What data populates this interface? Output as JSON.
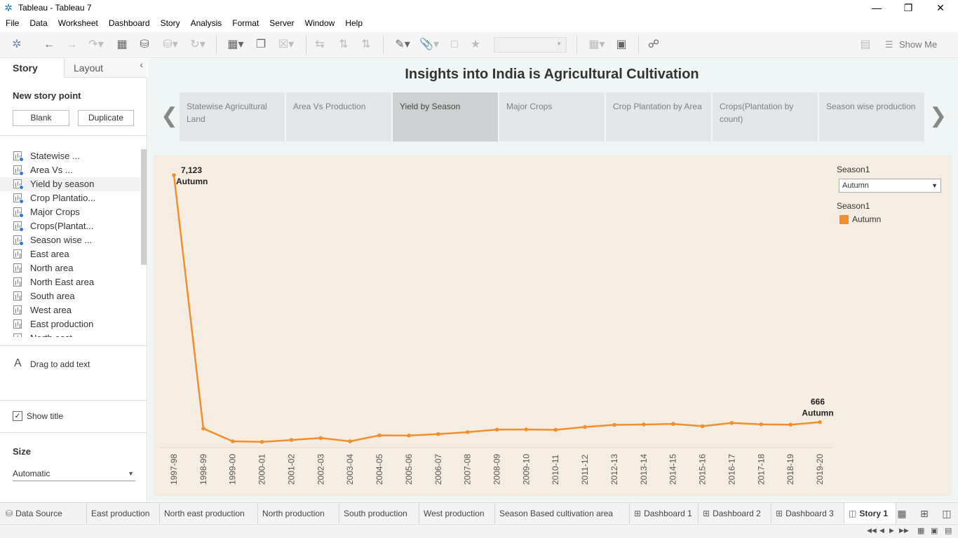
{
  "window": {
    "title": "Tableau - Tableau 7",
    "icon": "tableau-logo-icon",
    "controls": [
      "minimize",
      "restore",
      "close"
    ]
  },
  "menu": [
    "File",
    "Data",
    "Worksheet",
    "Dashboard",
    "Story",
    "Analysis",
    "Format",
    "Server",
    "Window",
    "Help"
  ],
  "toolbar": {
    "show_me_label": "Show Me"
  },
  "left_pane": {
    "tabs": {
      "story": "Story",
      "layout": "Layout"
    },
    "new_story_point": "New story point",
    "blank_label": "Blank",
    "duplicate_label": "Duplicate",
    "sheets": [
      {
        "label": "Statewise ...",
        "used": true
      },
      {
        "label": "Area Vs ...",
        "used": true
      },
      {
        "label": "Yield by season",
        "used": true,
        "selected": true
      },
      {
        "label": "Crop Plantatio...",
        "used": true
      },
      {
        "label": "Major Crops",
        "used": true
      },
      {
        "label": "Crops(Plantat...",
        "used": true
      },
      {
        "label": "Season wise ...",
        "used": true
      },
      {
        "label": "East area",
        "used": false
      },
      {
        "label": "North area",
        "used": false
      },
      {
        "label": "North East area",
        "used": false
      },
      {
        "label": "South area",
        "used": false
      },
      {
        "label": "West area",
        "used": false
      },
      {
        "label": "East production",
        "used": false
      },
      {
        "label": "North east ...",
        "used": false
      }
    ],
    "drag_text_icon": "A",
    "drag_text_label": "Drag to add text",
    "show_title_label": "Show title",
    "show_title_checked": true,
    "size_label": "Size",
    "size_value": "Automatic"
  },
  "story": {
    "title": "Insights into India is Agricultural Cultivation",
    "story_points": [
      {
        "label": "Statewise Agricultural Land",
        "active": false
      },
      {
        "label": "Area Vs Production",
        "active": false
      },
      {
        "label": "Yield by Season",
        "active": true
      },
      {
        "label": "Major Crops",
        "active": false
      },
      {
        "label": "Crop Plantation by Area",
        "active": false
      },
      {
        "label": "Crops(Plantation by count)",
        "active": false
      },
      {
        "label": "Season wise production",
        "active": false
      }
    ]
  },
  "legend": {
    "filter_title": "Season1",
    "filter_value": "Autumn",
    "color_title": "Season1",
    "items": [
      {
        "label": "Autumn",
        "color": "#f28e2b"
      }
    ]
  },
  "chart_data": {
    "type": "line",
    "x": [
      "1997-98",
      "1998-99",
      "1999-00",
      "2000-01",
      "2001-02",
      "2002-03",
      "2003-04",
      "2004-05",
      "2005-06",
      "2006-07",
      "2007-08",
      "2008-09",
      "2009-10",
      "2010-11",
      "2011-12",
      "2012-13",
      "2013-14",
      "2014-15",
      "2015-16",
      "2016-17",
      "2017-18",
      "2018-19",
      "2019-20"
    ],
    "series": [
      {
        "name": "Autumn",
        "color": "#f28e2b",
        "values": [
          7123,
          500,
          165,
          150,
          200,
          250,
          165,
          320,
          315,
          355,
          405,
          470,
          475,
          465,
          540,
          595,
          605,
          620,
          560,
          645,
          610,
          600,
          666
        ]
      }
    ],
    "annotations": [
      {
        "value_label": "7,123",
        "series_label": "Autumn"
      },
      {
        "value_label": "666",
        "series_label": "Autumn"
      }
    ],
    "ylim": [
      0,
      7123
    ],
    "grid": false,
    "legend": "right"
  },
  "bottom_tabs": [
    {
      "label": "Data Source",
      "icon": "database-icon",
      "active": false
    },
    {
      "label": "East production",
      "icon": "",
      "active": false
    },
    {
      "label": "North east production",
      "icon": "",
      "active": false
    },
    {
      "label": "North production",
      "icon": "",
      "active": false
    },
    {
      "label": "South production",
      "icon": "",
      "active": false
    },
    {
      "label": "West production",
      "icon": "",
      "active": false
    },
    {
      "label": "Season Based cultivation area",
      "icon": "",
      "active": false
    },
    {
      "label": "Dashboard 1",
      "icon": "dashboard-icon",
      "active": false
    },
    {
      "label": "Dashboard 2",
      "icon": "dashboard-icon",
      "active": false
    },
    {
      "label": "Dashboard 3",
      "icon": "dashboard-icon",
      "active": false
    },
    {
      "label": "Story 1",
      "icon": "story-icon",
      "active": true
    }
  ]
}
